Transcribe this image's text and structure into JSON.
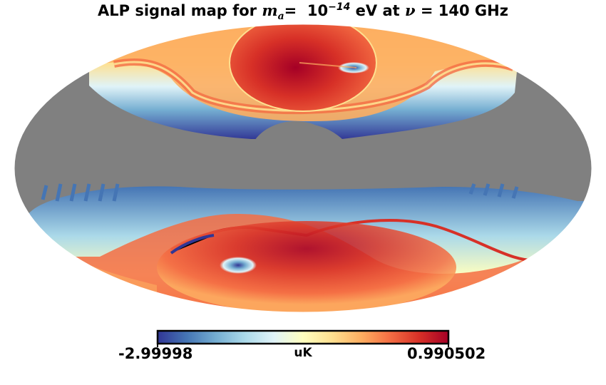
{
  "title": {
    "prefix": "ALP signal map for ",
    "mass_symbol": "m",
    "mass_subscript": "a",
    "mass_eq": "= ",
    "mass_value_base": "10",
    "mass_value_exp": "−14",
    "mass_unit": " eV at ",
    "freq_symbol": "ν",
    "freq_eq": " = 140 GHz"
  },
  "colorbar": {
    "min_label": "-2.99998",
    "max_label": "0.990502",
    "unit": "uK",
    "colormap": [
      "#313695",
      "#4575b4",
      "#74add1",
      "#abd9e9",
      "#e0f3f8",
      "#ffffbf",
      "#fee090",
      "#fdae61",
      "#f46d43",
      "#d73027",
      "#a50026"
    ]
  },
  "colors": {
    "masked": "#808080",
    "background": "#ffffff"
  }
}
